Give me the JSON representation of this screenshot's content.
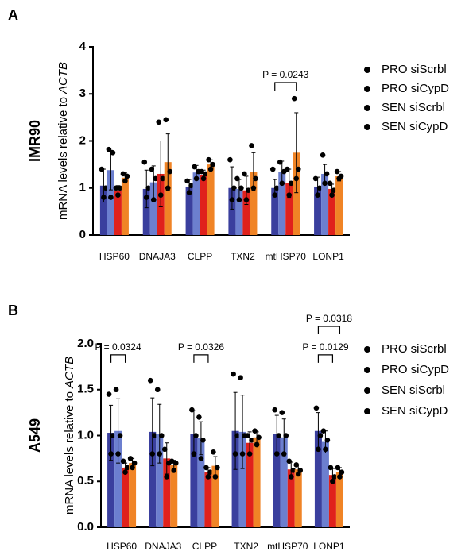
{
  "chart_data": [
    {
      "type": "bar",
      "panel": "A",
      "cell_line": "IMR90",
      "y_label": "mRNA levels relative to",
      "y_label_gene": "ACTB",
      "categories": [
        "HSP60",
        "DNAJA3",
        "CLPP",
        "TXN2",
        "mtHSP70",
        "LONP1"
      ],
      "ylim": [
        0,
        4
      ],
      "yticks": [
        0,
        1,
        2,
        3,
        4
      ],
      "legend": "right",
      "series": [
        {
          "name": "PRO siScrbl",
          "color": "#3a3f9e",
          "values": [
            1.05,
            0.98,
            1.03,
            1.0,
            1.0,
            1.03
          ],
          "errors": [
            0.35,
            0.4,
            0.15,
            0.45,
            0.18,
            0.2
          ],
          "points": [
            [
              0.8,
              1.0,
              1.4
            ],
            [
              0.8,
              1.0,
              1.55
            ],
            [
              0.9,
              1.05,
              1.15
            ],
            [
              0.75,
              1.0,
              1.6
            ],
            [
              0.85,
              1.0,
              1.4
            ],
            [
              0.85,
              1.0,
              1.2
            ]
          ]
        },
        {
          "name": "PRO siCypD",
          "color": "#6c7fcf",
          "values": [
            1.38,
            1.12,
            1.33,
            0.98,
            1.35,
            1.3
          ],
          "errors": [
            0.42,
            0.35,
            0.15,
            0.2,
            0.22,
            0.2
          ],
          "points": [
            [
              0.8,
              1.75,
              1.82
            ],
            [
              0.75,
              1.2,
              1.4
            ],
            [
              1.2,
              1.35,
              1.45
            ],
            [
              0.75,
              1.0,
              1.2
            ],
            [
              1.1,
              1.35,
              1.55
            ],
            [
              1.1,
              1.3,
              1.7
            ]
          ]
        },
        {
          "name": "SEN siScrbl",
          "color": "#e0211c",
          "values": [
            0.95,
            1.3,
            1.28,
            0.95,
            1.1,
            0.98
          ],
          "errors": [
            0.1,
            0.7,
            0.1,
            0.3,
            0.3,
            0.1
          ],
          "points": [
            [
              0.85,
              1.0,
              1.0
            ],
            [
              0.85,
              1.2,
              2.4
            ],
            [
              1.2,
              1.3,
              1.35
            ],
            [
              0.75,
              0.95,
              1.3
            ],
            [
              0.85,
              1.1,
              1.4
            ],
            [
              0.85,
              0.95,
              1.1
            ]
          ]
        },
        {
          "name": "SEN siCypD",
          "color": "#f08426",
          "values": [
            1.22,
            1.55,
            1.5,
            1.35,
            1.75,
            1.25
          ],
          "errors": [
            0.1,
            0.6,
            0.1,
            0.4,
            0.85,
            0.1
          ],
          "points": [
            [
              1.15,
              1.25,
              1.3
            ],
            [
              1.0,
              1.35,
              2.45
            ],
            [
              1.4,
              1.5,
              1.6
            ],
            [
              1.0,
              1.2,
              1.9
            ],
            [
              1.2,
              1.4,
              2.9
            ],
            [
              1.2,
              1.25,
              1.35
            ]
          ]
        }
      ],
      "annotations": [
        {
          "label": "P = 0.0243",
          "category": 4,
          "from": 0,
          "to": 3,
          "y": 3.24
        }
      ]
    },
    {
      "type": "bar",
      "panel": "B",
      "cell_line": "A549",
      "y_label": "mRNA levels relative to",
      "y_label_gene": "ACTB",
      "categories": [
        "HSP60",
        "DNAJA3",
        "CLPP",
        "TXN2",
        "mtHSP70",
        "LONP1"
      ],
      "ylim": [
        0,
        2
      ],
      "yticks": [
        {
          "value": 0,
          "label": "0.0"
        },
        0.5,
        {
          "value": 1,
          "label": "1.0"
        },
        1.5,
        {
          "value": 2,
          "label": "2.0"
        }
      ],
      "legend": "right",
      "series": [
        {
          "name": "PRO siScrbl",
          "color": "#3a3f9e",
          "values": [
            1.03,
            1.04,
            1.02,
            1.05,
            1.02,
            1.05
          ],
          "errors": [
            0.3,
            0.37,
            0.25,
            0.42,
            0.2,
            0.2
          ],
          "points": [
            [
              0.8,
              1.0,
              1.45
            ],
            [
              0.8,
              1.0,
              1.6
            ],
            [
              0.8,
              1.0,
              1.28
            ],
            [
              0.8,
              1.0,
              1.67
            ],
            [
              0.8,
              1.0,
              1.28
            ],
            [
              0.85,
              1.0,
              1.3
            ]
          ]
        },
        {
          "name": "PRO siCypD",
          "color": "#6c7fcf",
          "values": [
            1.05,
            1.02,
            0.97,
            1.04,
            0.98,
            0.93
          ],
          "errors": [
            0.35,
            0.32,
            0.18,
            0.4,
            0.2,
            0.12
          ],
          "points": [
            [
              0.8,
              1.0,
              1.5
            ],
            [
              0.8,
              1.0,
              1.5
            ],
            [
              0.75,
              0.95,
              1.2
            ],
            [
              0.8,
              1.0,
              1.63
            ],
            [
              0.8,
              1.0,
              1.25
            ],
            [
              0.85,
              0.95,
              1.05
            ]
          ]
        },
        {
          "name": "SEN siScrbl",
          "color": "#e0211c",
          "values": [
            0.65,
            0.75,
            0.6,
            0.92,
            0.63,
            0.57
          ],
          "errors": [
            0.05,
            0.17,
            0.05,
            0.12,
            0.08,
            0.07
          ],
          "points": [
            [
              0.6,
              0.65,
              0.72
            ],
            [
              0.55,
              0.7,
              0.85
            ],
            [
              0.55,
              0.6,
              0.65
            ],
            [
              0.8,
              0.95,
              1.0
            ],
            [
              0.55,
              0.62,
              0.72
            ],
            [
              0.5,
              0.55,
              0.65
            ]
          ]
        },
        {
          "name": "SEN siCypD",
          "color": "#f08426",
          "values": [
            0.7,
            0.68,
            0.67,
            0.98,
            0.63,
            0.6
          ],
          "errors": [
            0.05,
            0.05,
            0.1,
            0.06,
            0.05,
            0.05
          ],
          "points": [
            [
              0.65,
              0.7,
              0.75
            ],
            [
              0.62,
              0.7,
              0.72
            ],
            [
              0.55,
              0.65,
              0.82
            ],
            [
              0.9,
              0.98,
              1.05
            ],
            [
              0.58,
              0.62,
              0.68
            ],
            [
              0.55,
              0.6,
              0.65
            ]
          ]
        }
      ],
      "annotations": [
        {
          "label": "P = 0.0324",
          "category": 0,
          "from": 0,
          "to": 2,
          "y": 1.88
        },
        {
          "label": "P = 0.0326",
          "category": 2,
          "from": 0,
          "to": 2,
          "y": 1.88
        },
        {
          "label": "P = 0.0129",
          "category": 5,
          "from": 0,
          "to": 2,
          "y": 1.88
        },
        {
          "label": "P = 0.0318",
          "category": 5,
          "from": 0,
          "to": 3,
          "y": 2.19
        }
      ]
    }
  ]
}
